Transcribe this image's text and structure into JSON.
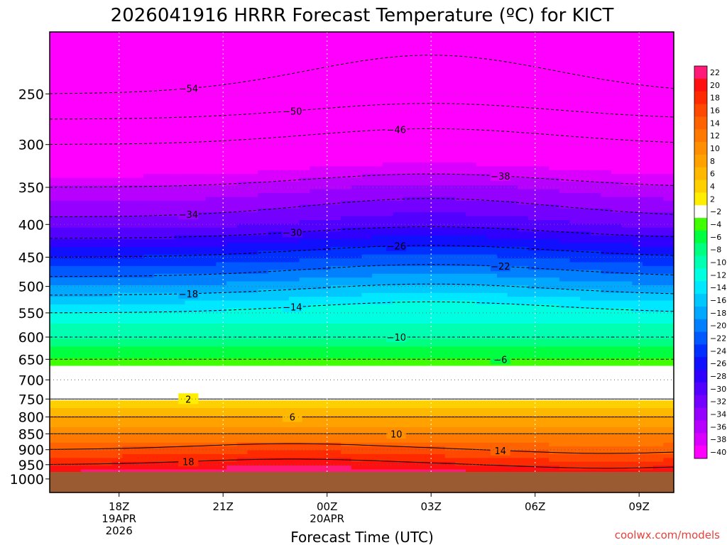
{
  "chart_data": {
    "type": "heatmap",
    "title": "2026041916 HRRR Forecast Temperature (ºC) for KICT",
    "xlabel": "Forecast Time (UTC)",
    "ylabel": "",
    "credit": "coolwx.com/models",
    "x_ticks": [
      {
        "hours": 2,
        "label": "18Z",
        "sub": [
          "19APR",
          "2026"
        ]
      },
      {
        "hours": 5,
        "label": "21Z",
        "sub": []
      },
      {
        "hours": 8,
        "label": "00Z",
        "sub": [
          "20APR"
        ]
      },
      {
        "hours": 11,
        "label": "03Z",
        "sub": []
      },
      {
        "hours": 14,
        "label": "06Z",
        "sub": []
      },
      {
        "hours": 17,
        "label": "09Z",
        "sub": []
      }
    ],
    "x_range_hours": [
      0,
      18
    ],
    "y_axis": "pressure (hPa), log scale, inverted",
    "y_range_hpa": [
      1050,
      200
    ],
    "y_ticks": [
      250,
      300,
      350,
      400,
      450,
      500,
      550,
      600,
      650,
      700,
      750,
      800,
      850,
      900,
      950,
      1000
    ],
    "ground_level_hpa": 975,
    "ground_color": "#9a5a32",
    "contour_levels_labeled": [
      -54,
      -50,
      -46,
      -38,
      -34,
      -30,
      -26,
      -22,
      -18,
      -14,
      -10,
      -6,
      2,
      6,
      10,
      14,
      18
    ],
    "colorbar": {
      "ticks": [
        22,
        20,
        18,
        16,
        14,
        12,
        10,
        8,
        6,
        4,
        2,
        -2,
        -4,
        -6,
        -8,
        -10,
        -12,
        -14,
        -16,
        -18,
        -20,
        -22,
        -24,
        -26,
        -28,
        -30,
        -32,
        -34,
        -36,
        -38,
        -40
      ],
      "colors": [
        "#ff1a7a",
        "#ff1010",
        "#ff2a00",
        "#ff4800",
        "#ff6200",
        "#ff7800",
        "#ff8e00",
        "#ffa200",
        "#ffb800",
        "#ffd000",
        "#ffee00",
        "#ffffff",
        "#40ff00",
        "#00ff40",
        "#00ff80",
        "#00ffb0",
        "#00ffe0",
        "#00e8ff",
        "#00c8ff",
        "#00a8ff",
        "#0080ff",
        "#0058ff",
        "#0030ff",
        "#1010ff",
        "#3000ff",
        "#5200ff",
        "#7400ff",
        "#9600ff",
        "#b800ff",
        "#da00ff",
        "#ff00ff"
      ],
      "extend_top_color": "#ff1a7a",
      "extend_bottom_color": "#ff00ff"
    },
    "profile_hpa_to_celsius": [
      {
        "p": 975,
        "t": 20
      },
      {
        "p": 950,
        "t": 18
      },
      {
        "p": 900,
        "t": 14
      },
      {
        "p": 850,
        "t": 10
      },
      {
        "p": 800,
        "t": 6
      },
      {
        "p": 750,
        "t": 2
      },
      {
        "p": 700,
        "t": 0
      },
      {
        "p": 650,
        "t": -6
      },
      {
        "p": 600,
        "t": -10
      },
      {
        "p": 550,
        "t": -14
      },
      {
        "p": 500,
        "t": -20
      },
      {
        "p": 450,
        "t": -26
      },
      {
        "p": 400,
        "t": -33
      },
      {
        "p": 350,
        "t": -38
      },
      {
        "p": 300,
        "t": -46
      },
      {
        "p": 250,
        "t": -54
      },
      {
        "p": 200,
        "t": -58
      }
    ]
  }
}
